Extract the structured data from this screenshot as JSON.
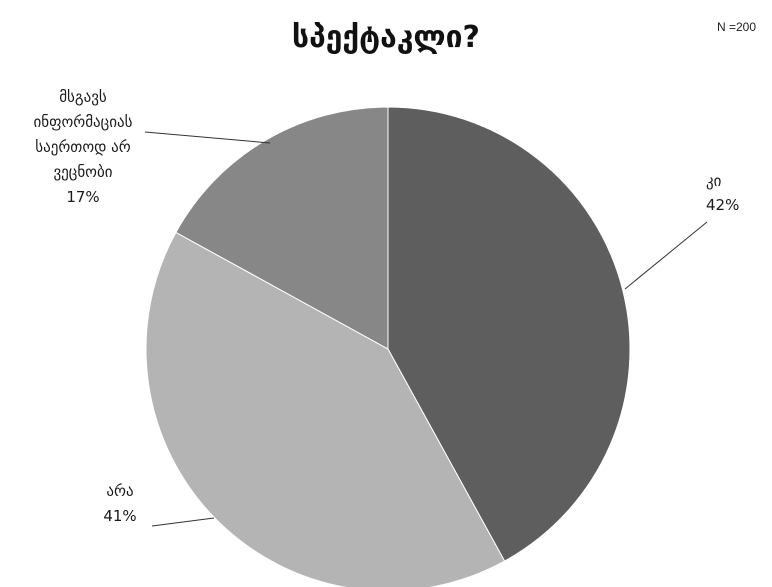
{
  "header": {
    "title_line_1": "",
    "title_line_2": "სპექტაკლი?",
    "sample_size": "N =200"
  },
  "chart_data": {
    "type": "pie",
    "title": "სპექტაკლი?",
    "start_angle_deg": 0,
    "direction": "clockwise",
    "slices": [
      {
        "label": "კი",
        "value": 42,
        "value_label": "42%",
        "color": "#5e5e5e"
      },
      {
        "label": "არა",
        "value": 41,
        "value_label": "41%",
        "color": "#b4b4b4"
      },
      {
        "label": "მსგავს ინფორმაციას საერთოდ არ ვეცნობი",
        "value": 17,
        "value_label": "17%",
        "color": "#878787"
      }
    ],
    "legend": "none"
  }
}
